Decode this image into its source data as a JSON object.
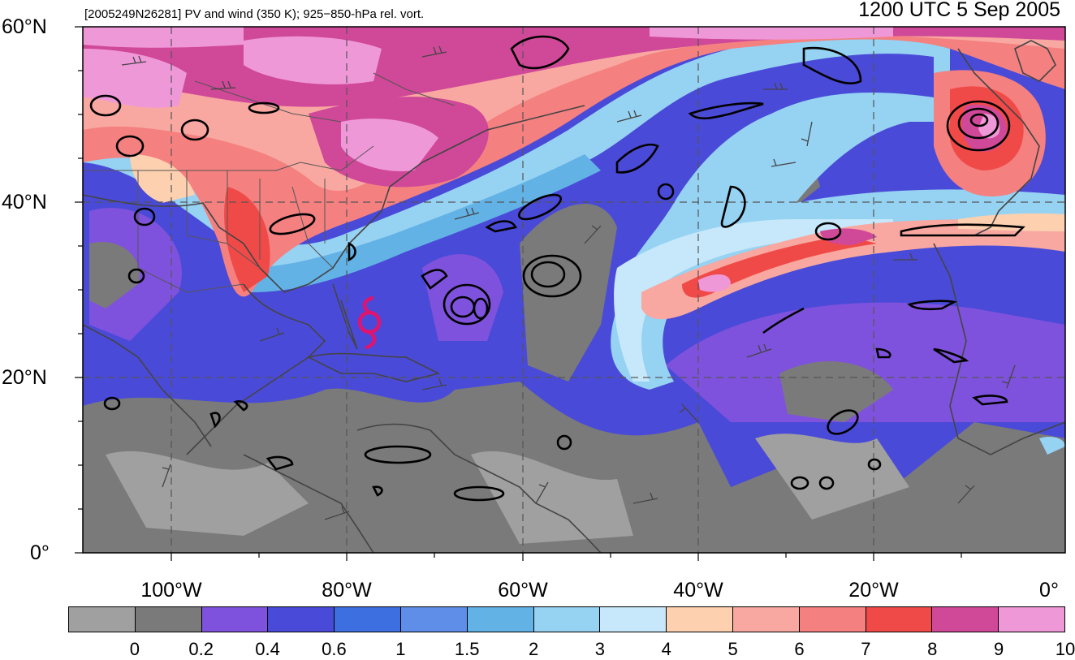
{
  "header": {
    "subtitle": "[2005249N26281] PV and wind (350 K); 925−850-hPa rel. vort.",
    "datetime": "1200 UTC 5 Sep 2005"
  },
  "map": {
    "lat_labels": [
      "60°N",
      "40°N",
      "20°N",
      "0°"
    ],
    "lon_labels": [
      "100°W",
      "80°W",
      "60°W",
      "40°W",
      "20°W",
      "0°"
    ],
    "storm_symbol": "tropical-cyclone-icon",
    "storm_color": "#e0136e"
  },
  "colorbar": {
    "labels": [
      "0",
      "0.2",
      "0.4",
      "0.6",
      "1",
      "1.5",
      "2",
      "3",
      "4",
      "5",
      "6",
      "7",
      "8",
      "9",
      "10"
    ],
    "colors": [
      "#a0a0a0",
      "#7a7a7a",
      "#7f52dd",
      "#4a4ad8",
      "#3d6fe0",
      "#5f8ee8",
      "#62b2e6",
      "#96d2f2",
      "#c6e8fa",
      "#fdd0b0",
      "#f8a8a0",
      "#f48080",
      "#f04a48",
      "#d04898",
      "#ef98d8"
    ]
  }
}
